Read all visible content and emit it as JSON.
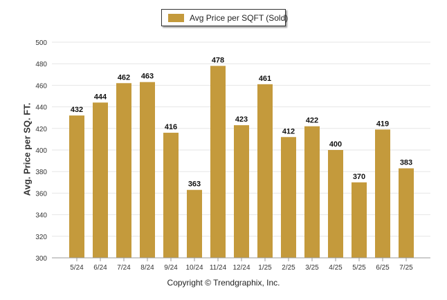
{
  "legend": {
    "label": "Avg Price per SQFT (Sold)"
  },
  "footer": {
    "copyright": "Copyright © Trendgraphix, Inc."
  },
  "colors": {
    "bar": "#c49a3c",
    "grid": "#e6e6e6",
    "axis": "#999999"
  },
  "chart_data": {
    "type": "bar",
    "title": "",
    "ylabel": "Avg. Price per SQ. FT.",
    "xlabel": "",
    "ylim": [
      300,
      500
    ],
    "yticks": [
      300,
      320,
      340,
      360,
      380,
      400,
      420,
      440,
      460,
      480,
      500
    ],
    "categories": [
      "5/24",
      "6/24",
      "7/24",
      "8/24",
      "9/24",
      "10/24",
      "11/24",
      "12/24",
      "1/25",
      "2/25",
      "3/25",
      "4/25",
      "5/25",
      "6/25",
      "7/25"
    ],
    "series": [
      {
        "name": "Avg Price per SQFT (Sold)",
        "values": [
          432,
          444,
          462,
          463,
          416,
          363,
          478,
          423,
          461,
          412,
          422,
          400,
          370,
          419,
          383
        ]
      }
    ],
    "grid": true,
    "legend_position": "top-center"
  }
}
